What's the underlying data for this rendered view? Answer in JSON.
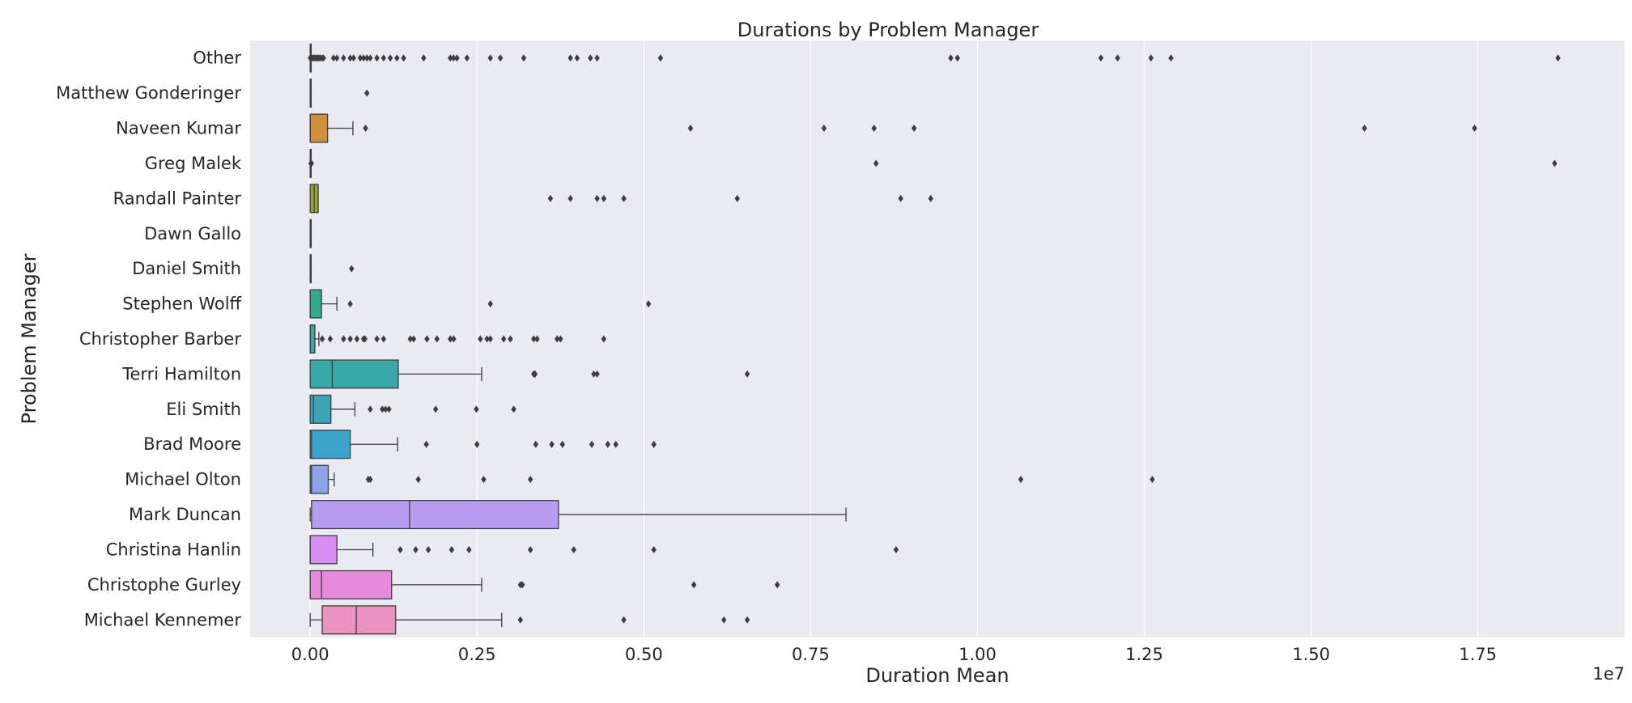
{
  "chart_data": {
    "type": "boxplot",
    "orientation": "horizontal",
    "title": "Durations by Problem Manager",
    "xlabel": "Duration Mean",
    "ylabel": "Problem Manager",
    "x_offset_label": "1e7",
    "xlim": [
      -0.09,
      1.97
    ],
    "xticks": [
      {
        "value": 0.0,
        "label": "0.00"
      },
      {
        "value": 0.25,
        "label": "0.25"
      },
      {
        "value": 0.5,
        "label": "0.50"
      },
      {
        "value": 0.75,
        "label": "0.75"
      },
      {
        "value": 1.0,
        "label": "1.00"
      },
      {
        "value": 1.25,
        "label": "1.25"
      },
      {
        "value": 1.5,
        "label": "1.50"
      },
      {
        "value": 1.75,
        "label": "1.75"
      }
    ],
    "grid": true,
    "background_color": "#eaeaf2",
    "categories": [
      {
        "name": "Other",
        "color": "#f77189",
        "q1": 0.0,
        "median": 0.0,
        "q3": 0.0,
        "wlo": 0.0,
        "whi": 0.0,
        "outliers": [
          0.0,
          0.003,
          0.005,
          0.007,
          0.009,
          0.011,
          0.013,
          0.015,
          0.018,
          0.02,
          0.035,
          0.04,
          0.05,
          0.06,
          0.065,
          0.075,
          0.08,
          0.085,
          0.09,
          0.1,
          0.11,
          0.12,
          0.13,
          0.14,
          0.17,
          0.21,
          0.215,
          0.22,
          0.235,
          0.27,
          0.285,
          0.32,
          0.39,
          0.4,
          0.42,
          0.43,
          0.525,
          0.96,
          0.97,
          1.185,
          1.21,
          1.26,
          1.29,
          1.87
        ]
      },
      {
        "name": "Matthew Gonderinger",
        "color": "#ee7b3a",
        "q1": 0.0,
        "median": 0.0,
        "q3": 0.0,
        "wlo": 0.0,
        "whi": 0.0,
        "outliers": [
          0.085
        ]
      },
      {
        "name": "Naveen Kumar",
        "color": "#cf8f3e",
        "q1": 0.0,
        "median": 0.0,
        "q3": 0.026,
        "wlo": 0.0,
        "whi": 0.064,
        "outliers": [
          0.083,
          0.57,
          0.77,
          0.845,
          0.905,
          1.58,
          1.745
        ]
      },
      {
        "name": "Greg Malek",
        "color": "#b49a3a",
        "q1": 0.0,
        "median": 0.0,
        "q3": 0.0,
        "wlo": 0.0,
        "whi": 0.0,
        "outliers": [
          0.001,
          0.002,
          0.848,
          1.865
        ]
      },
      {
        "name": "Randall Painter",
        "color": "#9aa13b",
        "q1": 0.0,
        "median": 0.006,
        "q3": 0.012,
        "wlo": 0.0,
        "whi": 0.012,
        "outliers": [
          0.36,
          0.39,
          0.43,
          0.44,
          0.47,
          0.64,
          0.885,
          0.93
        ]
      },
      {
        "name": "Dawn Gallo",
        "color": "#6fab3a",
        "q1": 0.0,
        "median": 0.0,
        "q3": 0.0,
        "wlo": 0.0,
        "whi": 0.0,
        "outliers": []
      },
      {
        "name": "Daniel Smith",
        "color": "#34af5f",
        "q1": 0.0,
        "median": 0.0,
        "q3": 0.0,
        "wlo": 0.0,
        "whi": 0.0,
        "outliers": [
          0.062
        ]
      },
      {
        "name": "Stephen Wolff",
        "color": "#35ac85",
        "q1": 0.0,
        "median": 0.0,
        "q3": 0.017,
        "wlo": 0.0,
        "whi": 0.04,
        "outliers": [
          0.06,
          0.27,
          0.507
        ]
      },
      {
        "name": "Christopher Barber",
        "color": "#37aa9a",
        "q1": 0.0,
        "median": 0.0,
        "q3": 0.007,
        "wlo": 0.0,
        "whi": 0.013,
        "outliers": [
          0.018,
          0.03,
          0.05,
          0.06,
          0.07,
          0.08,
          0.082,
          0.1,
          0.11,
          0.15,
          0.155,
          0.175,
          0.19,
          0.21,
          0.215,
          0.255,
          0.265,
          0.27,
          0.29,
          0.3,
          0.335,
          0.34,
          0.37,
          0.375,
          0.44
        ]
      },
      {
        "name": "Terri Hamilton",
        "color": "#38a8a8",
        "q1": 0.0,
        "median": 0.033,
        "q3": 0.132,
        "wlo": 0.0,
        "whi": 0.257,
        "outliers": [
          0.335,
          0.337,
          0.425,
          0.43,
          0.655
        ]
      },
      {
        "name": "Eli Smith",
        "color": "#3aa5b8",
        "q1": 0.0,
        "median": 0.005,
        "q3": 0.031,
        "wlo": 0.0,
        "whi": 0.067,
        "outliers": [
          0.09,
          0.108,
          0.113,
          0.118,
          0.188,
          0.249,
          0.305
        ]
      },
      {
        "name": "Brad Moore",
        "color": "#3ba3c9",
        "q1": 0.0,
        "median": 0.002,
        "q3": 0.06,
        "wlo": 0.0,
        "whi": 0.131,
        "outliers": [
          0.174,
          0.25,
          0.338,
          0.362,
          0.378,
          0.422,
          0.446,
          0.458,
          0.515
        ]
      },
      {
        "name": "Michael Olton",
        "color": "#8aa4eb",
        "q1": 0.0,
        "median": 0.002,
        "q3": 0.027,
        "wlo": 0.0,
        "whi": 0.036,
        "outliers": [
          0.087,
          0.09,
          0.162,
          0.26,
          0.33,
          1.065,
          1.262
        ]
      },
      {
        "name": "Mark Duncan",
        "color": "#b79cf1",
        "q1": 0.002,
        "median": 0.149,
        "q3": 0.372,
        "wlo": 0.0,
        "whi": 0.803,
        "outliers": []
      },
      {
        "name": "Christina Hanlin",
        "color": "#d88ef4",
        "q1": 0.0,
        "median": 0.0,
        "q3": 0.04,
        "wlo": 0.0,
        "whi": 0.094,
        "outliers": [
          0.135,
          0.158,
          0.177,
          0.212,
          0.238,
          0.33,
          0.395,
          0.515,
          0.878
        ]
      },
      {
        "name": "Christophe Gurley",
        "color": "#e78ad9",
        "q1": 0.0,
        "median": 0.017,
        "q3": 0.122,
        "wlo": 0.0,
        "whi": 0.257,
        "outliers": [
          0.315,
          0.318,
          0.575,
          0.7
        ]
      },
      {
        "name": "Michael Kennemer",
        "color": "#ec92c0",
        "q1": 0.018,
        "median": 0.069,
        "q3": 0.128,
        "wlo": 0.0,
        "whi": 0.287,
        "outliers": [
          0.315,
          0.47,
          0.62,
          0.655
        ]
      }
    ]
  }
}
